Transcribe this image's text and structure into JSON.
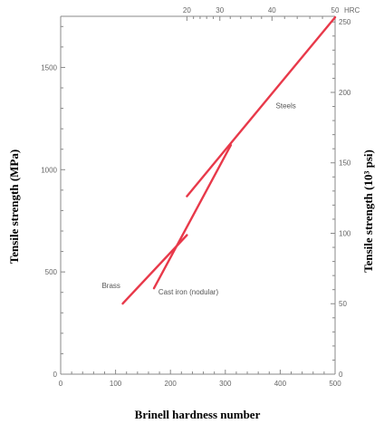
{
  "chart_data": {
    "type": "line",
    "xlabel": "Brinell hardness number",
    "ylabel_left": "Tensile strength (MPa)",
    "ylabel_right": "Tensile strength (10³ psi)",
    "top_axis_label": "HRC",
    "xlim": [
      0,
      500
    ],
    "ylim_left": [
      0,
      1750
    ],
    "ylim_right_psi": [
      0,
      254
    ],
    "x_ticks": [
      "0",
      "100",
      "200",
      "300",
      "400",
      "500"
    ],
    "y_left_ticks": [
      "0",
      "500",
      "1000",
      "1500"
    ],
    "y_right_ticks": [
      "0",
      "50",
      "100",
      "150",
      "200",
      "250"
    ],
    "top_ticks": [
      {
        "label": "20",
        "brinell": 230
      },
      {
        "label": "30",
        "brinell": 290
      },
      {
        "label": "40",
        "brinell": 385
      },
      {
        "label": "50",
        "brinell": 500
      }
    ],
    "series": [
      {
        "name": "Steels",
        "points": [
          [
            230,
            870
          ],
          [
            500,
            1745
          ]
        ]
      },
      {
        "name": "Brass",
        "points": [
          [
            113,
            345
          ],
          [
            230,
            680
          ]
        ]
      },
      {
        "name": "Cast iron (nodular)",
        "points": [
          [
            170,
            420
          ],
          [
            310,
            1120
          ]
        ]
      }
    ],
    "annotations": [
      {
        "text": "Steels",
        "series": "Steels",
        "x": 392,
        "y": 1300
      },
      {
        "text": "Brass",
        "series": "Brass",
        "x": 75,
        "y": 420
      },
      {
        "text": "Cast iron (nodular)",
        "series": "Cast iron (nodular)",
        "x": 178,
        "y": 390
      }
    ],
    "grid": false
  }
}
